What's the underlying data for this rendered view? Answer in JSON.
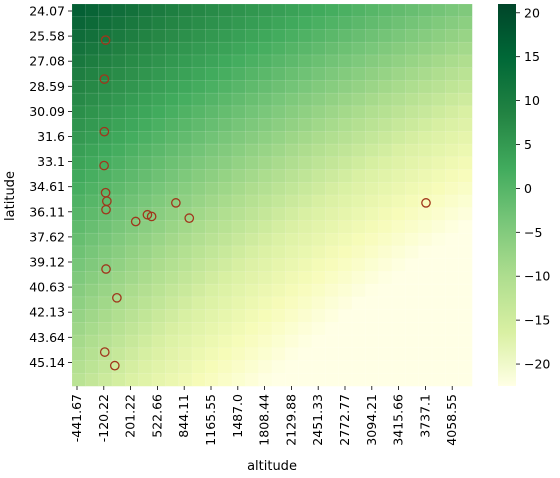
{
  "chart_data": {
    "type": "heatmap",
    "title": "",
    "xlabel": "altitude",
    "ylabel": "latitude",
    "x_tick_labels": [
      "-441.67",
      "-120.22",
      "201.22",
      "522.66",
      "844.11",
      "1165.55",
      "1487.0",
      "1808.44",
      "2129.88",
      "2451.33",
      "2772.77",
      "3094.21",
      "3415.66",
      "3737.1",
      "4058.55"
    ],
    "y_tick_labels": [
      "24.07",
      "25.58",
      "27.08",
      "28.59",
      "30.09",
      "31.6",
      "33.1",
      "34.61",
      "36.11",
      "37.62",
      "39.12",
      "40.63",
      "42.13",
      "43.64",
      "45.14"
    ],
    "xlim": [
      -441.67,
      4340
    ],
    "ylim": [
      24.07,
      46.6
    ],
    "grid": {
      "cols": 30,
      "rows": 30
    },
    "field_description": "smooth linear gradient; high values at low altitude / low latitude (top-left), low values at high altitude / high latitude (bottom-right)",
    "value_range": [
      -22.5,
      21
    ],
    "colorbar": {
      "colormap": "YlGn",
      "ticks": [
        20,
        15,
        10,
        5,
        0,
        -5,
        -10,
        -15,
        -20
      ],
      "tick_labels": [
        "20",
        "15",
        "10",
        "5",
        "0",
        "−5",
        "−10",
        "−15",
        "−20"
      ],
      "location": "right"
    },
    "scatter": {
      "marker": "open circle",
      "color": "#a0361c",
      "points": [
        {
          "altitude": -40,
          "latitude": 26.2
        },
        {
          "altitude": -55,
          "latitude": 28.5
        },
        {
          "altitude": -55,
          "latitude": 31.6
        },
        {
          "altitude": -58,
          "latitude": 33.6
        },
        {
          "altitude": -40,
          "latitude": 35.2
        },
        {
          "altitude": -25,
          "latitude": 35.7
        },
        {
          "altitude": -35,
          "latitude": 36.2
        },
        {
          "altitude": 320,
          "latitude": 36.9
        },
        {
          "altitude": 460,
          "latitude": 36.5
        },
        {
          "altitude": 510,
          "latitude": 36.6
        },
        {
          "altitude": 800,
          "latitude": 35.8
        },
        {
          "altitude": 960,
          "latitude": 36.7
        },
        {
          "altitude": 3790,
          "latitude": 35.8
        },
        {
          "altitude": -35,
          "latitude": 39.7
        },
        {
          "altitude": 95,
          "latitude": 41.4
        },
        {
          "altitude": -50,
          "latitude": 44.6
        },
        {
          "altitude": 70,
          "latitude": 45.4
        }
      ]
    }
  }
}
